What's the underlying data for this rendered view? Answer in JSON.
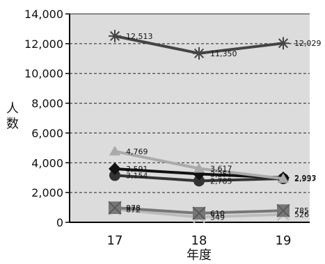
{
  "chart_data": {
    "type": "line",
    "title": "",
    "xlabel": "年度",
    "ylabel": "人数",
    "categories": [
      "17",
      "18",
      "19"
    ],
    "ylim": [
      0,
      14000
    ],
    "yticks": [
      "0",
      "2,000",
      "4,000",
      "6,000",
      "8,000",
      "10,000",
      "12,000",
      "14,000"
    ],
    "grid": true,
    "legend": "none",
    "series": [
      {
        "values": [
          12513,
          11350,
          12029
        ],
        "labels": [
          "12,513",
          "11,350",
          "12,029"
        ],
        "marker": "asterisk",
        "color": "#444444"
      },
      {
        "values": [
          4769,
          3617,
          2931
        ],
        "labels": [
          "4,769",
          "3,617",
          ""
        ],
        "marker": "triangle",
        "color": "#aaaaaa"
      },
      {
        "values": [
          3591,
          3251,
          2993
        ],
        "labels": [
          "3,591",
          "3,251",
          "2,993"
        ],
        "marker": "diamond",
        "color": "#111111"
      },
      {
        "values": [
          3154,
          2785,
          2937
        ],
        "labels": [
          "3,154",
          "2,785",
          "2,937"
        ],
        "marker": "circle",
        "color": "#333333"
      },
      {
        "values": [
          978,
          610,
          785
        ],
        "labels": [
          "978",
          "610",
          "785"
        ],
        "marker": "square-x",
        "color": "#777777"
      },
      {
        "values": [
          872,
          349,
          526
        ],
        "labels": [
          "872",
          "349",
          "526"
        ],
        "marker": "x",
        "color": "#bbbbbb"
      }
    ]
  }
}
